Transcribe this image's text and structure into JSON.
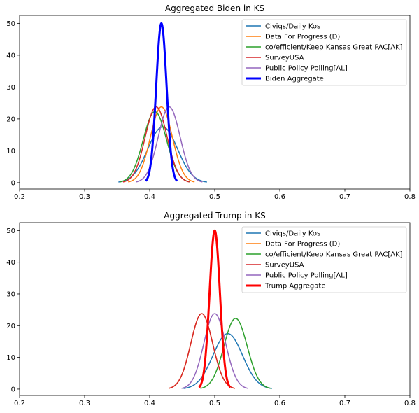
{
  "chart_data": [
    {
      "type": "line",
      "title": "Aggregated Biden in KS",
      "xlabel": "",
      "ylabel": "",
      "xlim": [
        0.2,
        0.8
      ],
      "ylim": [
        -2,
        52.5
      ],
      "xticks": [
        0.2,
        0.3,
        0.4,
        0.5,
        0.6,
        0.7,
        0.8
      ],
      "xtick_labels": [
        "0.2",
        "0.3",
        "0.4",
        "0.5",
        "0.6",
        "0.7",
        "0.8"
      ],
      "yticks": [
        0,
        10,
        20,
        30,
        40,
        50
      ],
      "ytick_labels": [
        "0",
        "10",
        "20",
        "30",
        "40",
        "50"
      ],
      "grid": false,
      "legend_position": "top-right",
      "series": [
        {
          "name": "Civiqs/Daily Kos",
          "color": "#1f77b4",
          "mean": 0.42,
          "peak": 17.5,
          "xmin": 0.352,
          "xmax": 0.488,
          "width": 1.5
        },
        {
          "name": "Data For Progress (D)",
          "color": "#ff7f0e",
          "mean": 0.418,
          "peak": 23.8,
          "xmin": 0.367,
          "xmax": 0.469,
          "width": 1.5
        },
        {
          "name": "co/efficient/Keep Kansas Great PAC[AK]",
          "color": "#2ca02c",
          "mean": 0.408,
          "peak": 22.3,
          "xmin": 0.354,
          "xmax": 0.462,
          "width": 1.5
        },
        {
          "name": "SurveyUSA",
          "color": "#d62728",
          "mean": 0.41,
          "peak": 23.8,
          "xmin": 0.359,
          "xmax": 0.461,
          "width": 1.5
        },
        {
          "name": "Public Policy Polling[AL]",
          "color": "#9467bd",
          "mean": 0.43,
          "peak": 23.8,
          "xmin": 0.379,
          "xmax": 0.481,
          "width": 1.5
        },
        {
          "name": "Biden Aggregate",
          "color": "#0000ff",
          "mean": 0.418,
          "peak": 50,
          "xmin": 0.394,
          "xmax": 0.442,
          "width": 3
        }
      ]
    },
    {
      "type": "line",
      "title": "Aggregated Trump in KS",
      "xlabel": "",
      "ylabel": "",
      "xlim": [
        0.2,
        0.8
      ],
      "ylim": [
        -2,
        52.5
      ],
      "xticks": [
        0.2,
        0.3,
        0.4,
        0.5,
        0.6,
        0.7,
        0.8
      ],
      "xtick_labels": [
        "0.2",
        "0.3",
        "0.4",
        "0.5",
        "0.6",
        "0.7",
        "0.8"
      ],
      "yticks": [
        0,
        10,
        20,
        30,
        40,
        50
      ],
      "ytick_labels": [
        "0",
        "10",
        "20",
        "30",
        "40",
        "50"
      ],
      "grid": false,
      "legend_position": "top-right",
      "series": [
        {
          "name": "Civiqs/Daily Kos",
          "color": "#1f77b4",
          "mean": 0.52,
          "peak": 17.5,
          "xmin": 0.452,
          "xmax": 0.588,
          "width": 1.5
        },
        {
          "name": "Data For Progress (D)",
          "color": "#ff7f0e",
          "mean": 0.48,
          "peak": 23.8,
          "xmin": 0.429,
          "xmax": 0.531,
          "width": 1.5
        },
        {
          "name": "co/efficient/Keep Kansas Great PAC[AK]",
          "color": "#2ca02c",
          "mean": 0.532,
          "peak": 22.3,
          "xmin": 0.478,
          "xmax": 0.586,
          "width": 1.5
        },
        {
          "name": "SurveyUSA",
          "color": "#d62728",
          "mean": 0.48,
          "peak": 23.8,
          "xmin": 0.429,
          "xmax": 0.531,
          "width": 1.5
        },
        {
          "name": "Public Policy Polling[AL]",
          "color": "#9467bd",
          "mean": 0.5,
          "peak": 23.8,
          "xmin": 0.449,
          "xmax": 0.551,
          "width": 1.5
        },
        {
          "name": "Trump Aggregate",
          "color": "#ff0000",
          "mean": 0.5,
          "peak": 50,
          "xmin": 0.476,
          "xmax": 0.524,
          "width": 3
        }
      ]
    }
  ]
}
